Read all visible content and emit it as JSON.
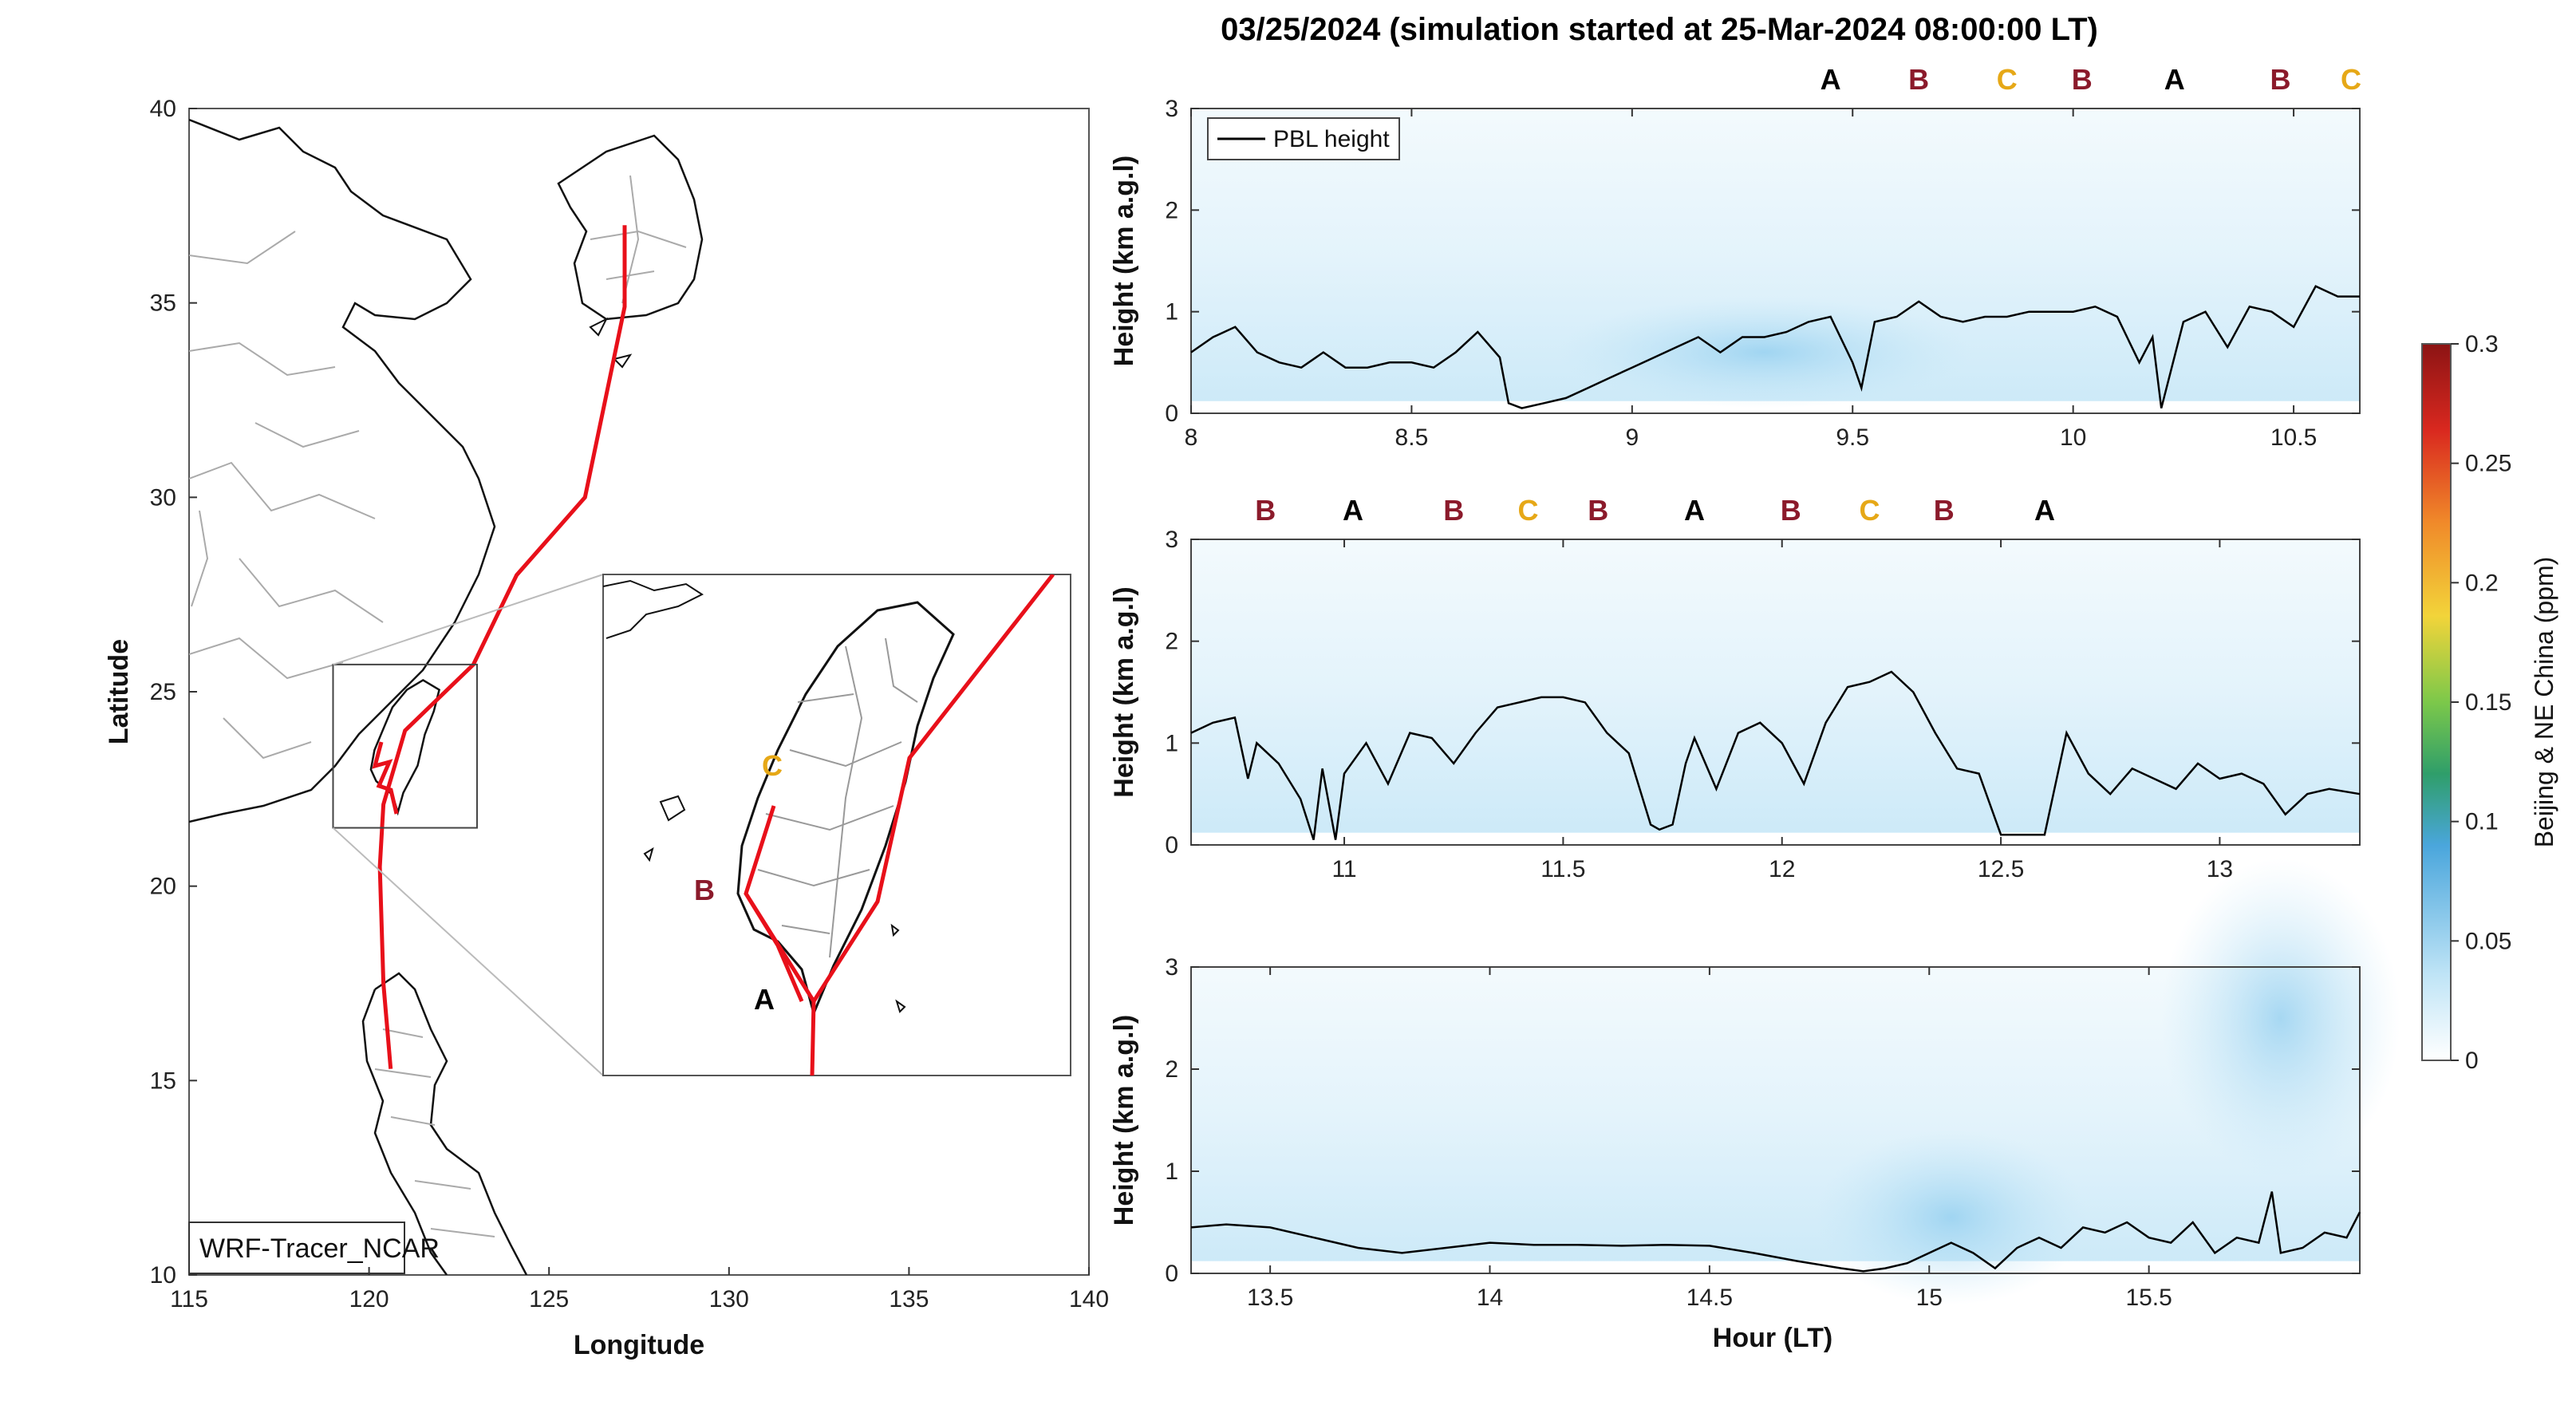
{
  "title": "03/25/2024 (simulation started at 25-Mar-2024 08:00:00 LT)",
  "colors": {
    "A": "#000000",
    "B": "#8b1a2b",
    "C": "#e6a817",
    "track": "#e8101a",
    "pbl": "#000000"
  },
  "map": {
    "xlabel": "Longitude",
    "ylabel": "Latitude",
    "xlim": [
      115,
      140
    ],
    "ylim": [
      10,
      40
    ],
    "xticks": [
      "115",
      "120",
      "125",
      "130",
      "135",
      "140"
    ],
    "yticks": [
      "10",
      "15",
      "20",
      "25",
      "30",
      "35",
      "40"
    ],
    "label_box": "WRF-Tracer_NCAR",
    "inset_region": {
      "lon": [
        119,
        123
      ],
      "lat": [
        21.5,
        25.7
      ]
    },
    "inset_labels": [
      "C",
      "B",
      "A"
    ],
    "track_lonlat": [
      [
        120.6,
        15.3
      ],
      [
        120.4,
        17.5
      ],
      [
        120.3,
        20.5
      ],
      [
        120.4,
        22.1
      ],
      [
        121.0,
        24.0
      ],
      [
        122.9,
        25.7
      ],
      [
        124.1,
        28.0
      ],
      [
        126.0,
        30.0
      ],
      [
        127.1,
        34.9
      ],
      [
        127.1,
        37.0
      ]
    ],
    "taiwan_lonlat": [
      [
        120.2,
        22.7
      ],
      [
        120.05,
        23.0
      ],
      [
        120.15,
        23.5
      ],
      [
        120.4,
        24.05
      ],
      [
        120.65,
        24.6
      ],
      [
        121.05,
        25.05
      ],
      [
        121.5,
        25.3
      ],
      [
        121.95,
        25.05
      ],
      [
        121.8,
        24.5
      ],
      [
        121.55,
        23.9
      ],
      [
        121.35,
        23.1
      ],
      [
        120.95,
        22.4
      ],
      [
        120.8,
        21.9
      ],
      [
        120.65,
        22.35
      ],
      [
        120.2,
        22.7
      ]
    ]
  },
  "colorbar": {
    "label": "Beijing & NE China (ppm)",
    "ticks": [
      "0",
      "0.05",
      "0.1",
      "0.15",
      "0.2",
      "0.25",
      "0.3"
    ]
  },
  "chart_data": [
    {
      "type": "line",
      "legend": "PBL height",
      "ylabel": "Height (km a.g.l)",
      "xlabel": "",
      "xlim": [
        8,
        10.65
      ],
      "ylim": [
        0,
        3
      ],
      "xticks": [
        "8",
        "8.5",
        "9",
        "9.5",
        "10",
        "10.5"
      ],
      "yticks": [
        "0",
        "1",
        "2",
        "3"
      ],
      "markers": [
        {
          "label": "A",
          "x": 9.45
        },
        {
          "label": "B",
          "x": 9.65
        },
        {
          "label": "C",
          "x": 9.85
        },
        {
          "label": "B",
          "x": 10.02
        },
        {
          "label": "A",
          "x": 10.23
        },
        {
          "label": "B",
          "x": 10.47
        },
        {
          "label": "C",
          "x": 10.63
        }
      ],
      "x": [
        8.0,
        8.05,
        8.1,
        8.15,
        8.2,
        8.25,
        8.3,
        8.35,
        8.4,
        8.45,
        8.5,
        8.55,
        8.6,
        8.65,
        8.7,
        8.72,
        8.75,
        8.8,
        8.85,
        8.9,
        8.95,
        9.0,
        9.05,
        9.1,
        9.15,
        9.2,
        9.25,
        9.3,
        9.35,
        9.4,
        9.45,
        9.5,
        9.52,
        9.55,
        9.6,
        9.65,
        9.7,
        9.75,
        9.8,
        9.85,
        9.9,
        9.95,
        10.0,
        10.05,
        10.1,
        10.15,
        10.18,
        10.2,
        10.25,
        10.3,
        10.35,
        10.4,
        10.45,
        10.5,
        10.55,
        10.6,
        10.65
      ],
      "y": [
        0.6,
        0.75,
        0.85,
        0.6,
        0.5,
        0.45,
        0.6,
        0.45,
        0.45,
        0.5,
        0.5,
        0.45,
        0.6,
        0.8,
        0.55,
        0.1,
        0.05,
        0.1,
        0.15,
        0.25,
        0.35,
        0.45,
        0.55,
        0.65,
        0.75,
        0.6,
        0.75,
        0.75,
        0.8,
        0.9,
        0.95,
        0.5,
        0.25,
        0.9,
        0.95,
        1.1,
        0.95,
        0.9,
        0.95,
        0.95,
        1.0,
        1.0,
        1.0,
        1.05,
        0.95,
        0.5,
        0.75,
        0.05,
        0.9,
        1.0,
        0.65,
        1.05,
        1.0,
        0.85,
        1.25,
        1.15,
        1.15
      ]
    },
    {
      "type": "line",
      "legend": "",
      "ylabel": "Height (km a.g.l)",
      "xlabel": "",
      "xlim": [
        10.65,
        13.32
      ],
      "ylim": [
        0,
        3
      ],
      "xticks": [
        "11",
        "11.5",
        "12",
        "12.5",
        "13"
      ],
      "yticks": [
        "0",
        "1",
        "2",
        "3"
      ],
      "markers": [
        {
          "label": "B",
          "x": 10.82
        },
        {
          "label": "A",
          "x": 11.02
        },
        {
          "label": "B",
          "x": 11.25
        },
        {
          "label": "C",
          "x": 11.42
        },
        {
          "label": "B",
          "x": 11.58
        },
        {
          "label": "A",
          "x": 11.8
        },
        {
          "label": "B",
          "x": 12.02
        },
        {
          "label": "C",
          "x": 12.2
        },
        {
          "label": "B",
          "x": 12.37
        },
        {
          "label": "A",
          "x": 12.6
        }
      ],
      "x": [
        10.65,
        10.7,
        10.75,
        10.78,
        10.8,
        10.85,
        10.9,
        10.93,
        10.95,
        10.98,
        11.0,
        11.05,
        11.1,
        11.15,
        11.2,
        11.25,
        11.3,
        11.35,
        11.4,
        11.45,
        11.5,
        11.55,
        11.6,
        11.65,
        11.7,
        11.72,
        11.75,
        11.78,
        11.8,
        11.85,
        11.9,
        11.95,
        12.0,
        12.05,
        12.1,
        12.15,
        12.2,
        12.25,
        12.3,
        12.35,
        12.4,
        12.45,
        12.5,
        12.55,
        12.6,
        12.65,
        12.7,
        12.75,
        12.8,
        12.85,
        12.9,
        12.95,
        13.0,
        13.05,
        13.1,
        13.15,
        13.2,
        13.25,
        13.32
      ],
      "y": [
        1.1,
        1.2,
        1.25,
        0.65,
        1.0,
        0.8,
        0.45,
        0.05,
        0.75,
        0.05,
        0.7,
        1.0,
        0.6,
        1.1,
        1.05,
        0.8,
        1.1,
        1.35,
        1.4,
        1.45,
        1.45,
        1.4,
        1.1,
        0.9,
        0.2,
        0.15,
        0.2,
        0.8,
        1.05,
        0.55,
        1.1,
        1.2,
        1.0,
        0.6,
        1.2,
        1.55,
        1.6,
        1.7,
        1.5,
        1.1,
        0.75,
        0.7,
        0.1,
        0.1,
        0.1,
        1.1,
        0.7,
        0.5,
        0.75,
        0.65,
        0.55,
        0.8,
        0.65,
        0.7,
        0.6,
        0.3,
        0.5,
        0.55,
        0.5
      ]
    },
    {
      "type": "line",
      "legend": "",
      "ylabel": "Height (km a.g.l)",
      "xlabel": "Hour (LT)",
      "xlim": [
        13.32,
        15.98
      ],
      "ylim": [
        0,
        3
      ],
      "xticks": [
        "13.5",
        "14",
        "14.5",
        "15",
        "15.5"
      ],
      "yticks": [
        "0",
        "1",
        "2",
        "3"
      ],
      "markers": [],
      "x": [
        13.32,
        13.4,
        13.5,
        13.6,
        13.7,
        13.8,
        13.9,
        14.0,
        14.1,
        14.2,
        14.3,
        14.4,
        14.5,
        14.6,
        14.7,
        14.8,
        14.85,
        14.9,
        14.95,
        15.0,
        15.05,
        15.1,
        15.15,
        15.2,
        15.25,
        15.3,
        15.35,
        15.4,
        15.45,
        15.5,
        15.55,
        15.6,
        15.65,
        15.7,
        15.75,
        15.78,
        15.8,
        15.85,
        15.9,
        15.95,
        15.98
      ],
      "y": [
        0.45,
        0.48,
        0.45,
        0.35,
        0.25,
        0.2,
        0.25,
        0.3,
        0.28,
        0.28,
        0.27,
        0.28,
        0.27,
        0.2,
        0.12,
        0.05,
        0.02,
        0.05,
        0.1,
        0.2,
        0.3,
        0.2,
        0.05,
        0.25,
        0.35,
        0.25,
        0.45,
        0.4,
        0.5,
        0.35,
        0.3,
        0.5,
        0.2,
        0.35,
        0.3,
        0.8,
        0.2,
        0.25,
        0.4,
        0.35,
        0.6
      ]
    }
  ]
}
